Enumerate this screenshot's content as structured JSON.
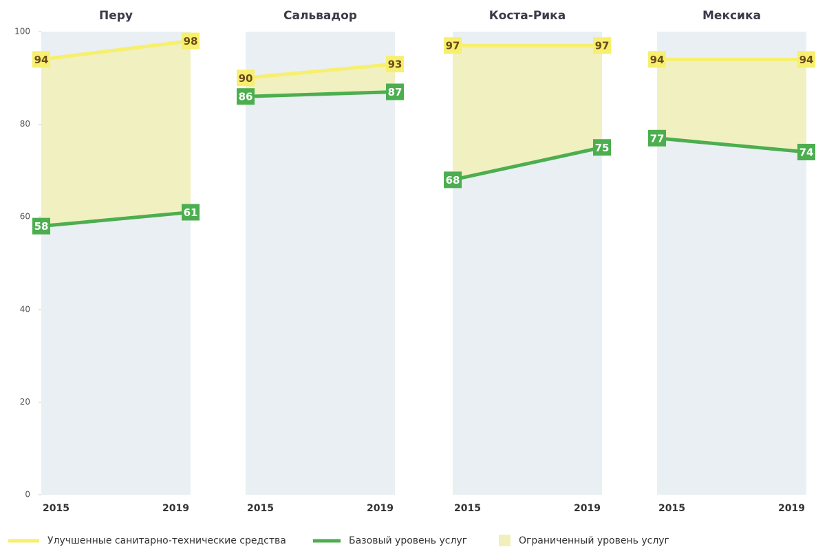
{
  "chart_data": [
    {
      "type": "line",
      "title": "Перу",
      "categories": [
        "2015",
        "2019"
      ],
      "ylim": [
        0,
        100
      ],
      "yticks": [
        0,
        20,
        40,
        60,
        80,
        100
      ],
      "series": [
        {
          "color": "#f7ef6e",
          "values": [
            94,
            98
          ]
        },
        {
          "color": "#4cae4f",
          "values": [
            58,
            61
          ]
        }
      ]
    },
    {
      "type": "line",
      "title": "Сальвадор",
      "categories": [
        "2015",
        "2019"
      ],
      "ylim": [
        0,
        100
      ],
      "series": [
        {
          "color": "#f7ef6e",
          "values": [
            90,
            93
          ]
        },
        {
          "color": "#4cae4f",
          "values": [
            86,
            87
          ]
        }
      ]
    },
    {
      "type": "line",
      "title": "Коста-Рика",
      "categories": [
        "2015",
        "2019"
      ],
      "ylim": [
        0,
        100
      ],
      "series": [
        {
          "color": "#f7ef6e",
          "values": [
            97,
            97
          ]
        },
        {
          "color": "#4cae4f",
          "values": [
            68,
            75
          ]
        }
      ]
    },
    {
      "type": "line",
      "title": "Мексика",
      "categories": [
        "2015",
        "2019"
      ],
      "ylim": [
        0,
        100
      ],
      "series": [
        {
          "color": "#f7ef6e",
          "values": [
            94,
            94
          ]
        },
        {
          "color": "#4cae4f",
          "values": [
            77,
            74
          ]
        }
      ]
    }
  ],
  "legend": [
    {
      "name": "Улучшенные санитарно-технические средства",
      "color": "#f7ef6e"
    },
    {
      "name": "Базовый уровень услуг",
      "color": "#4cae4f"
    },
    {
      "name": "Ограниченный уровень услуг",
      "color": "#f2f0ba"
    }
  ]
}
